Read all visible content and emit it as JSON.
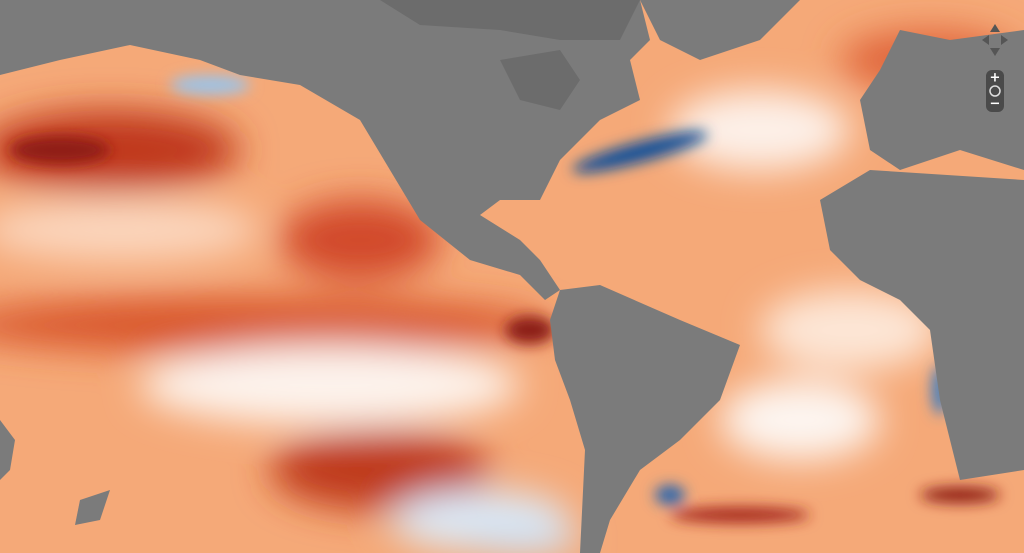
{
  "map_controls": {
    "zoom_in": "+",
    "zoom_out": "−"
  }
}
